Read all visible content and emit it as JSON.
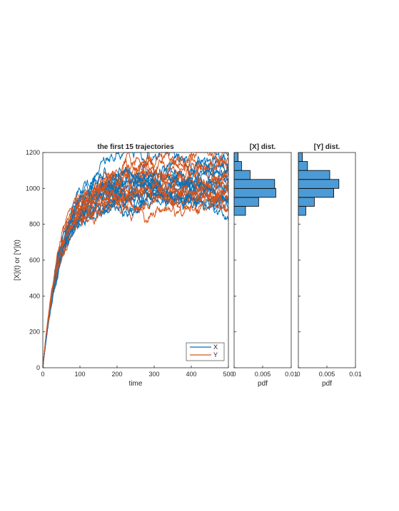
{
  "chart_data": [
    {
      "type": "line",
      "title": "the first 15 trajectories",
      "xlabel": "time",
      "ylabel": "[X](t) or [Y](t)",
      "xlim": [
        0,
        500
      ],
      "ylim": [
        0,
        1200
      ],
      "xticks": [
        "0",
        "100",
        "200",
        "300",
        "400",
        "500"
      ],
      "yticks": [
        "0",
        "200",
        "400",
        "600",
        "800",
        "1000",
        "1200"
      ],
      "legend": {
        "placement": "bottom-right",
        "entries": [
          "X",
          "Y"
        ]
      },
      "series": [
        {
          "name": "X",
          "color": "#0072BD",
          "count": 15,
          "t_days": [
            0,
            25,
            50,
            75,
            100,
            125,
            150,
            175,
            200,
            250,
            300,
            350,
            400,
            450,
            500
          ],
          "plateaus": [
            1180,
            1100,
            1060,
            1040,
            1020,
            1000,
            990,
            980,
            970,
            960,
            950,
            940,
            930,
            920,
            1080
          ],
          "approx_mean": [
            0,
            270,
            500,
            680,
            800,
            880,
            930,
            955,
            965,
            975,
            980,
            985,
            985,
            990,
            990
          ]
        },
        {
          "name": "Y",
          "color": "#D95319",
          "count": 15,
          "plateaus": [
            1120,
            1110,
            1100,
            1080,
            1060,
            1040,
            1020,
            1000,
            990,
            980,
            960,
            950,
            940,
            920,
            900
          ],
          "approx_mean": [
            0,
            275,
            510,
            700,
            830,
            910,
            960,
            985,
            995,
            1000,
            1005,
            1005,
            1005,
            1005,
            1005
          ]
        }
      ]
    },
    {
      "type": "bar",
      "orientation": "horizontal",
      "title": "[X] dist.",
      "xlabel": "pdf",
      "xlim": [
        0,
        0.01
      ],
      "xticks": [
        "0",
        "0.005",
        "0.01"
      ],
      "ylim": [
        0,
        1200
      ],
      "bin_edges": [
        850,
        900,
        950,
        1000,
        1050,
        1100,
        1150,
        1200
      ],
      "values": [
        0.002,
        0.0043,
        0.0073,
        0.0071,
        0.0028,
        0.0013,
        0.0007
      ],
      "color": "#4C9BD6"
    },
    {
      "type": "bar",
      "orientation": "horizontal",
      "title": "[Y] dist.",
      "xlabel": "pdf",
      "xlim": [
        0,
        0.01
      ],
      "xticks": [
        "0",
        "0.005",
        "0.01"
      ],
      "ylim": [
        0,
        1200
      ],
      "bin_edges": [
        850,
        900,
        950,
        1000,
        1050,
        1100,
        1150,
        1200
      ],
      "values": [
        0.0013,
        0.0028,
        0.0062,
        0.0071,
        0.0055,
        0.0016,
        0.0007
      ],
      "color": "#4C9BD6"
    }
  ]
}
